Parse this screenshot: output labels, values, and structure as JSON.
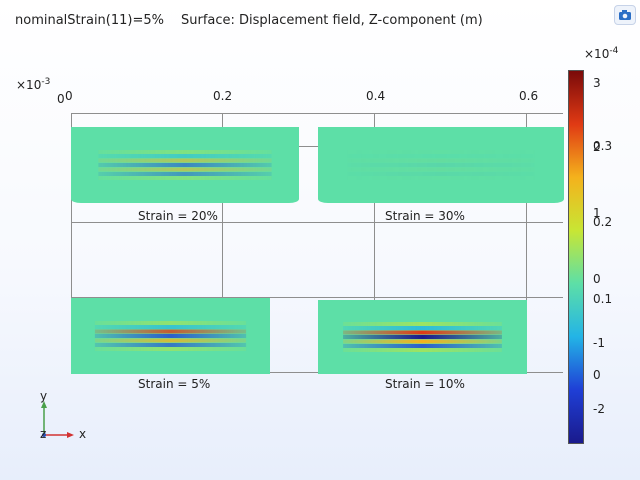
{
  "header": {
    "parameter": "nominalStrain(11)=5%",
    "plot_title": "Surface: Displacement field, Z-component (m)"
  },
  "axes": {
    "x_exponent": "×10",
    "x_exponent_power": "-3",
    "x_ticks": [
      "0",
      "0.2",
      "0.4",
      "0.6"
    ],
    "y_ticks": [
      "0"
    ]
  },
  "colorbar": {
    "exponent_base": "×10",
    "exponent_power": "-4",
    "ticks_primary": [
      "3",
      "2",
      "1",
      "0",
      "-1",
      "-2"
    ],
    "ticks_secondary": [
      "0.3",
      "0.2",
      "0.1",
      "0"
    ],
    "min": -2.7,
    "max": 3.2,
    "colors": [
      "#1a1a8c",
      "#1f3fd6",
      "#23b4e6",
      "#5ddfa7",
      "#c8e634",
      "#f4b21c",
      "#e03a14",
      "#7a0a0a"
    ]
  },
  "panels": [
    {
      "label": "Strain = 20%",
      "amplitude": 0.55
    },
    {
      "label": "Strain = 30%",
      "amplitude": 0.05
    },
    {
      "label": "Strain = 5%",
      "amplitude": 0.8
    },
    {
      "label": "Strain = 10%",
      "amplitude": 1.0
    }
  ],
  "triad": {
    "x_label": "x",
    "y_label": "y",
    "z_label": "z"
  },
  "toolbar": {
    "icon": "camera-icon"
  }
}
